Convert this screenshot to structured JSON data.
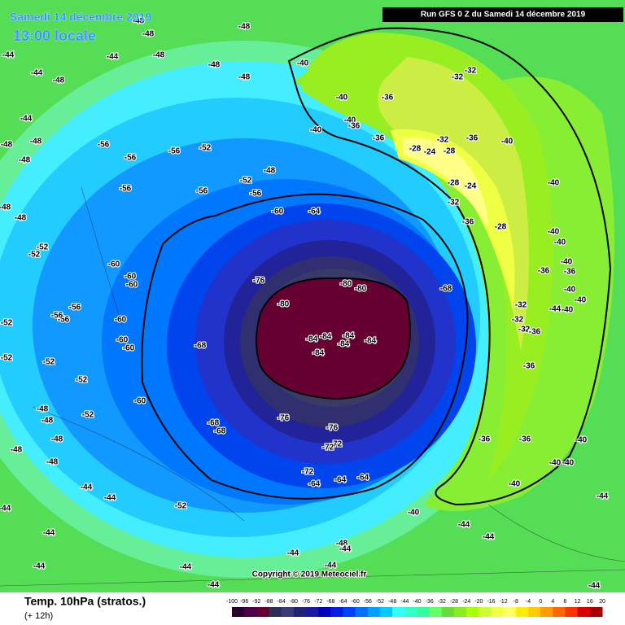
{
  "header": {
    "date": "Samedi 14 décembre 2019",
    "time": "13:00 locale",
    "run": "Run GFS 0 Z du Samedi 14 décembre 2019"
  },
  "copyright": "Copyright © 2019 Meteociel.fr",
  "footer": {
    "title": "Temp. 10hPa (stratos.)",
    "lead": "(+ 12h)"
  },
  "colorbar": {
    "labels": [
      -100,
      -96,
      -92,
      -88,
      -84,
      -80,
      -76,
      -72,
      -68,
      -64,
      -60,
      -56,
      -52,
      -48,
      -44,
      -40,
      -36,
      -32,
      -28,
      -24,
      -20,
      -16,
      -12,
      -8,
      -4,
      0,
      4,
      8,
      12,
      16,
      20
    ],
    "colors": [
      "#2a0030",
      "#4a0048",
      "#660033",
      "#2d2d5a",
      "#3a3a7a",
      "#22227a",
      "#1a1aa0",
      "#0000c0",
      "#0020e0",
      "#0040ff",
      "#0070ff",
      "#00a0ff",
      "#00ccff",
      "#33ffff",
      "#33ffcc",
      "#33ff99",
      "#66ff66",
      "#66dd33",
      "#88ee22",
      "#aaff00",
      "#ccff33",
      "#eeff44",
      "#ffff66",
      "#ffee00",
      "#ffcc00",
      "#ff9900",
      "#ff6600",
      "#ff3300",
      "#dd0000",
      "#aa0000"
    ]
  },
  "contour_labels": [
    -48,
    -48,
    -48,
    -44,
    -44,
    -48,
    -44,
    -48,
    -48,
    -48,
    -44,
    -48,
    -48,
    -48,
    -40,
    -32,
    -32,
    -40,
    -36,
    -40,
    -40,
    -36,
    -36,
    -28,
    -24,
    -28,
    -32,
    -36,
    -40,
    -28,
    -24,
    -32,
    -36,
    -28,
    -40,
    -40,
    -40,
    -40,
    -36,
    -40,
    -36,
    -40,
    -44,
    -40,
    -32,
    -32,
    -32,
    -36,
    -36,
    -36,
    -36,
    -40,
    -40,
    -40,
    -40,
    -40,
    -44,
    -44,
    -44,
    -44,
    -60,
    -64,
    -60,
    -60,
    -60,
    -56,
    -56,
    -60,
    -60,
    -60,
    -60,
    -76,
    -80,
    -80,
    -80,
    -68,
    -84,
    -84,
    -84,
    -84,
    -84,
    -84,
    -68,
    -68,
    -68,
    -76,
    -76,
    -72,
    -72,
    -72,
    -64,
    -64,
    -64,
    -52,
    -52,
    -52,
    -52,
    -48,
    -48,
    -48,
    -48,
    -48,
    -44,
    -44,
    -44,
    -44,
    -44,
    -44,
    -44,
    -44,
    -48,
    -44,
    -44,
    -56,
    -56,
    -56,
    -52,
    -56,
    -56,
    -52,
    -56,
    -48,
    -52,
    -52,
    -52,
    -52,
    -48,
    -48,
    -56
  ]
}
